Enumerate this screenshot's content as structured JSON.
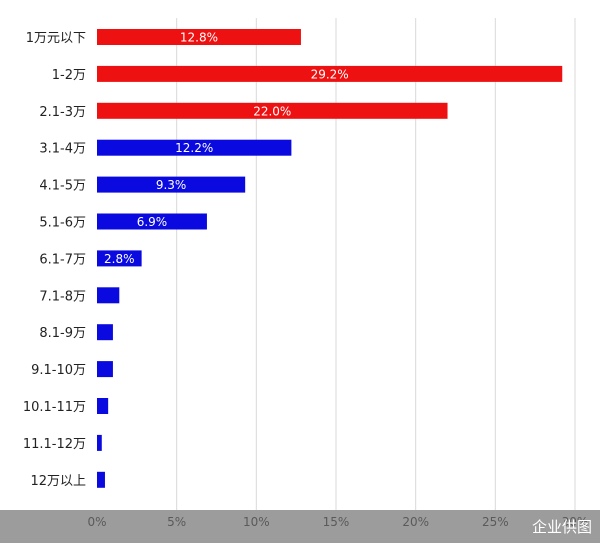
{
  "chart_data": {
    "type": "bar",
    "orientation": "horizontal",
    "categories": [
      "1万元以下",
      "1-2万",
      "2.1-3万",
      "3.1-4万",
      "4.1-5万",
      "5.1-6万",
      "6.1-7万",
      "7.1-8万",
      "8.1-9万",
      "9.1-10万",
      "10.1-11万",
      "11.1-12万",
      "12万以上"
    ],
    "values": [
      12.8,
      29.2,
      22.0,
      12.2,
      9.3,
      6.9,
      2.8,
      1.4,
      1.0,
      1.0,
      0.7,
      0.3,
      0.5
    ],
    "data_labels": [
      "12.8%",
      "29.2%",
      "22.0%",
      "12.2%",
      "9.3%",
      "6.9%",
      "2.8%",
      "",
      "",
      "",
      "",
      "",
      ""
    ],
    "bar_colors": [
      "#ee1111",
      "#ee1111",
      "#ee1111",
      "#0a0ae0",
      "#0a0ae0",
      "#0a0ae0",
      "#0a0ae0",
      "#0a0ae0",
      "#0a0ae0",
      "#0a0ae0",
      "#0a0ae0",
      "#0a0ae0",
      "#0a0ae0"
    ],
    "x_ticks": [
      0,
      5,
      10,
      15,
      20,
      25,
      30
    ],
    "x_tick_labels": [
      "0%",
      "5%",
      "10%",
      "15%",
      "20%",
      "25%",
      "30%"
    ],
    "xlim": [
      0,
      30
    ],
    "grid": "vertical",
    "legend": "none",
    "colors": {
      "gridline": "#d9d9d9",
      "axis_band": "#9c9c9c",
      "label_text": "#222222"
    }
  },
  "watermark": "企业供图"
}
